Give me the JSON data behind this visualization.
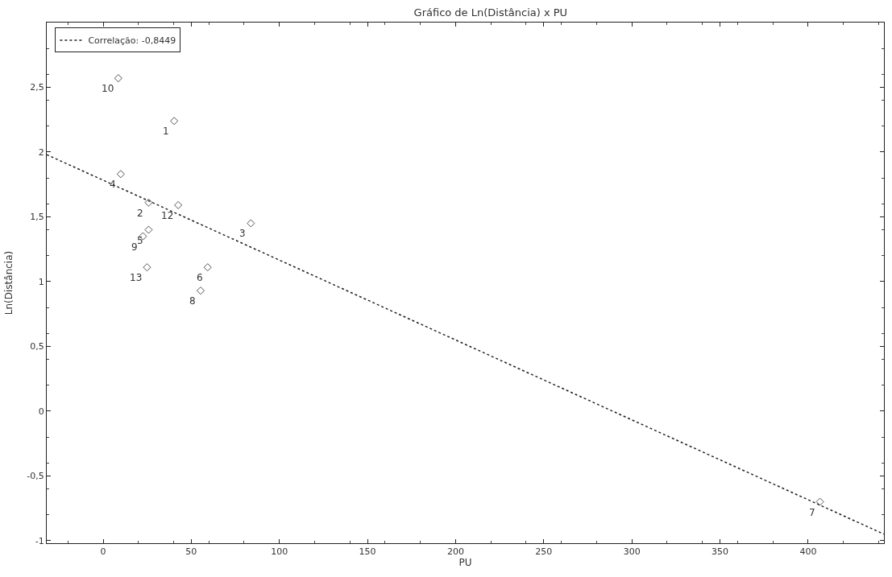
{
  "chart_data": {
    "type": "scatter",
    "title": "Gráfico de Ln(Distância) x PU",
    "xlabel": "PU",
    "ylabel": "Ln(Distância)",
    "series": [
      {
        "color": "#555555",
        "marker": "diamond",
        "x": [
          40.3,
          25.8,
          83.8,
          10,
          25.8,
          59.3,
          406.7,
          55.3,
          22.6,
          8.6,
          42.6,
          24.9
        ],
        "values": [
          2.24,
          1.61,
          1.45,
          1.83,
          1.4,
          1.11,
          -0.7,
          0.93,
          1.35,
          2.57,
          1.59,
          1.11
        ]
      },
      {
        "type": "line",
        "name": "Correlação: -0,8449",
        "color": "#222222",
        "line_style": "dotted",
        "x": [
          -32,
          443
        ],
        "values": [
          1.98,
          -0.95
        ]
      }
    ],
    "annotations": [
      {
        "text": "1",
        "x": 40.3,
        "y": 2.24
      },
      {
        "text": "2",
        "x": 25.8,
        "y": 1.61
      },
      {
        "text": "3",
        "x": 83.8,
        "y": 1.45
      },
      {
        "text": "4",
        "x": 10,
        "y": 1.83
      },
      {
        "text": "5",
        "x": 25.8,
        "y": 1.4
      },
      {
        "text": "6",
        "x": 59.3,
        "y": 1.11
      },
      {
        "text": "7",
        "x": 406.7,
        "y": -0.7
      },
      {
        "text": "8",
        "x": 55.3,
        "y": 0.93
      },
      {
        "text": "9",
        "x": 22.6,
        "y": 1.35
      },
      {
        "text": "10",
        "x": 8.6,
        "y": 2.57
      },
      {
        "text": "12",
        "x": 42.6,
        "y": 1.59
      },
      {
        "text": "13",
        "x": 24.9,
        "y": 1.11
      }
    ],
    "xlim": [
      -32,
      443
    ],
    "xticks": [
      0,
      50,
      100,
      150,
      200,
      250,
      300,
      350,
      400
    ],
    "ylim": [
      -1.02,
      3.0
    ],
    "yticks": [
      {
        "value": -1,
        "label": "-1"
      },
      {
        "value": -0.5,
        "label": "-0,5"
      },
      {
        "value": 0,
        "label": "0"
      },
      {
        "value": 0.5,
        "label": "0,5"
      },
      {
        "value": 1,
        "label": "1"
      },
      {
        "value": 1.5,
        "label": "1,5"
      },
      {
        "value": 2,
        "label": "2"
      },
      {
        "value": 2.5,
        "label": "2,5"
      }
    ],
    "legend": "top left"
  }
}
